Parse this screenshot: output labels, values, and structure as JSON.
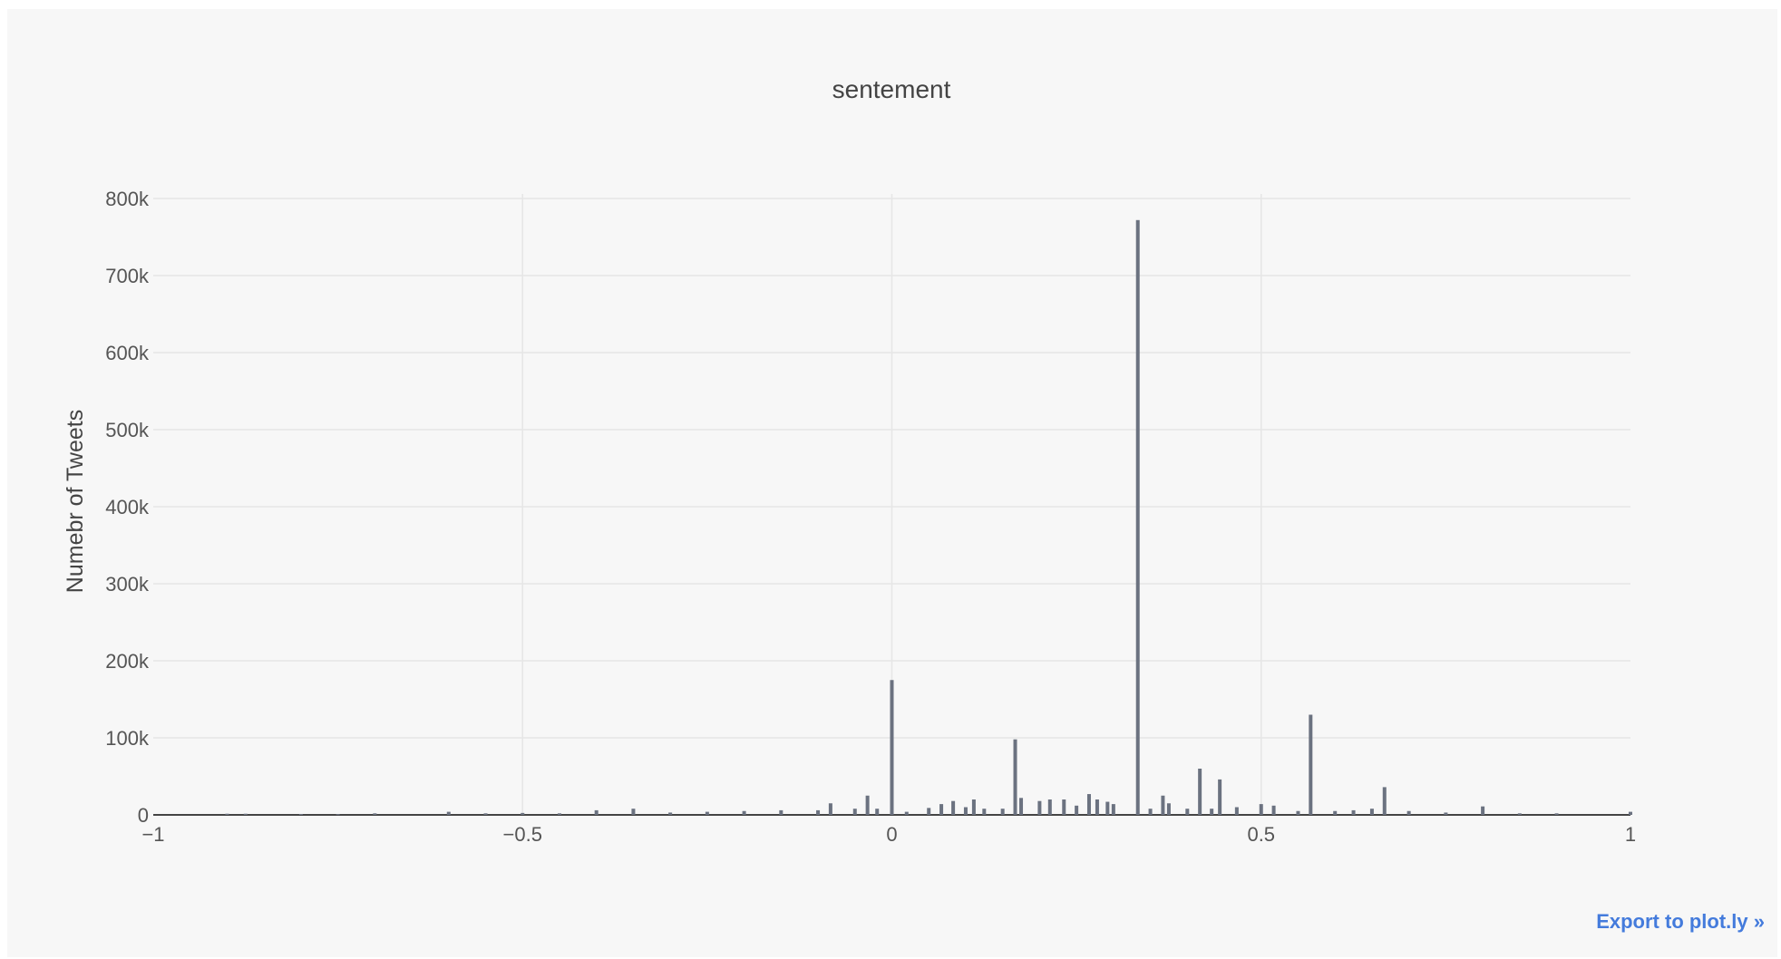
{
  "chart_data": {
    "type": "bar",
    "title": "sentement",
    "xlabel": "",
    "ylabel": "Numebr of Tweets",
    "xlim": [
      -1,
      1
    ],
    "ylim": [
      0,
      800000
    ],
    "x_ticks": [
      -1,
      -0.5,
      0,
      0.5,
      1
    ],
    "x_tick_labels": [
      "−1",
      "−0.5",
      "0",
      "0.5",
      "1"
    ],
    "y_ticks": [
      0,
      100000,
      200000,
      300000,
      400000,
      500000,
      600000,
      700000,
      800000
    ],
    "y_tick_labels": [
      "0",
      "100k",
      "200k",
      "300k",
      "400k",
      "500k",
      "600k",
      "700k",
      "800k"
    ],
    "grid": true,
    "bar_color": "#6b7280",
    "series": [
      {
        "x": [
          -0.9,
          -0.875,
          -0.8,
          -0.75,
          -0.7,
          -0.6,
          -0.55,
          -0.5,
          -0.45,
          -0.4,
          -0.35,
          -0.3,
          -0.25,
          -0.2,
          -0.15,
          -0.1,
          -0.083,
          -0.05,
          -0.033,
          -0.02,
          0,
          0.02,
          0.05,
          0.067,
          0.083,
          0.1,
          0.111,
          0.125,
          0.15,
          0.167,
          0.175,
          0.2,
          0.214,
          0.233,
          0.25,
          0.267,
          0.278,
          0.292,
          0.3,
          0.333,
          0.35,
          0.367,
          0.375,
          0.4,
          0.417,
          0.433,
          0.444,
          0.467,
          0.5,
          0.517,
          0.55,
          0.567,
          0.6,
          0.625,
          0.65,
          0.667,
          0.7,
          0.75,
          0.8,
          0.85,
          0.9,
          1
        ],
        "values": [
          1500,
          1500,
          1200,
          1000,
          2000,
          4000,
          2000,
          2500,
          2000,
          6000,
          8000,
          3000,
          4000,
          5000,
          6000,
          6000,
          15000,
          8000,
          25000,
          8000,
          175000,
          4000,
          9000,
          14000,
          18000,
          10000,
          20000,
          8000,
          8000,
          98000,
          22000,
          18000,
          20000,
          20000,
          12000,
          27000,
          20000,
          17000,
          14000,
          772000,
          8000,
          25000,
          15000,
          8000,
          60000,
          8000,
          46000,
          10000,
          14000,
          12000,
          5000,
          130000,
          5000,
          6000,
          8000,
          36000,
          5000,
          3000,
          11000,
          2000,
          2000,
          4000
        ]
      }
    ]
  },
  "export_label": "Export to plot.ly »"
}
